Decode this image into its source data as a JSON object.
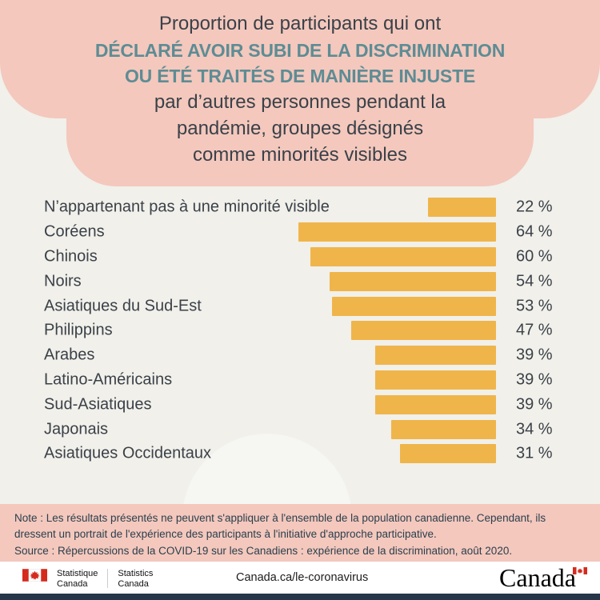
{
  "header": {
    "line1": "Proportion de participants qui ont",
    "emphasis_lines": [
      "DÉCLARÉ AVOIR SUBI DE LA DISCRIMINATION",
      "OU ÉTÉ TRAITÉS DE MANIÈRE INJUSTE"
    ],
    "subtitle_lines": [
      "par d’autres personnes pendant la",
      "pandémie, groupes désignés",
      "comme minorités visibles"
    ]
  },
  "chart_data": {
    "type": "bar",
    "orientation": "horizontal",
    "bar_alignment": "right",
    "title": "Proportion de participants qui ont déclaré avoir subi de la discrimination ou été traités de manière injuste par d’autres personnes pendant la pandémie, groupes désignés comme minorités visibles",
    "categories": [
      "N’appartenant pas à une minorité visible",
      "Coréens",
      "Chinois",
      "Noirs",
      "Asiatiques du Sud-Est",
      "Philippins",
      "Arabes",
      "Latino-Américains",
      "Sud-Asiatiques",
      "Japonais",
      "Asiatiques Occidentaux"
    ],
    "values": [
      22,
      64,
      60,
      54,
      53,
      47,
      39,
      39,
      39,
      34,
      31
    ],
    "value_labels": [
      "22 %",
      "64 %",
      "60 %",
      "54 %",
      "53 %",
      "47 %",
      "39 %",
      "39 %",
      "39 %",
      "34 %",
      "31 %"
    ],
    "xlim": [
      0,
      64
    ],
    "unit": "%",
    "bar_color": "#efb54b",
    "grid": false,
    "legend": false
  },
  "notes": {
    "note": "Note : Les résultats présentés ne peuvent s'appliquer à l'ensemble de la population canadienne. Cependant, ils dressent un portrait de l'expérience des participants à l'initiative d'approche participative.",
    "source": "Source : Répercussions de la COVID-19 sur les Canadiens : expérience de la discrimination, août 2020."
  },
  "footer": {
    "statcan_fr": "Statistique\nCanada",
    "statcan_en": "Statistics\nCanada",
    "url": "Canada.ca/le-coronavirus",
    "wordmark": "Canada"
  },
  "colors": {
    "header_background": "#f4c8bd",
    "page_background": "#f1f0ea",
    "bar": "#efb54b",
    "emphasis_text": "#5e8c94",
    "body_text": "#3a4149",
    "footer_strip": "#26374a",
    "flag_red": "#d52b1e"
  }
}
